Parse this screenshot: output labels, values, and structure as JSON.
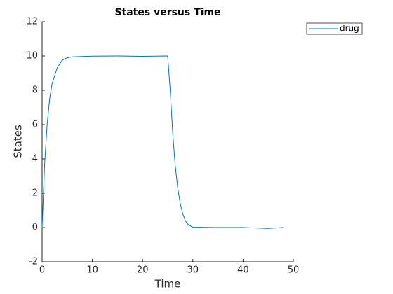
{
  "chart_data": {
    "type": "line",
    "title": "States versus Time",
    "x_label": "Time",
    "y_label": "States",
    "x": [
      0,
      0.5,
      1,
      1.5,
      2,
      3,
      4,
      5,
      6,
      8,
      10,
      15,
      20,
      25,
      25.5,
      26,
      26.5,
      27,
      27.5,
      28,
      28.5,
      29,
      29.5,
      30,
      35,
      40,
      45,
      48
    ],
    "series": [
      {
        "name": "drug",
        "color": "#0072bd",
        "values": [
          0,
          3.7,
          6.0,
          7.5,
          8.4,
          9.3,
          9.75,
          9.9,
          9.95,
          9.97,
          9.99,
          10.0,
          9.98,
          10.0,
          8,
          5.5,
          3.6,
          2.3,
          1.4,
          0.8,
          0.4,
          0.2,
          0.1,
          0.02,
          0,
          0,
          -0.05,
          0
        ]
      }
    ],
    "xlim": [
      0,
      50
    ],
    "xticks": [
      0,
      10,
      20,
      30,
      40,
      50
    ],
    "ylim": [
      -2,
      12
    ],
    "yticks": [
      -2,
      0,
      2,
      4,
      6,
      8,
      10,
      12
    ],
    "legend": "outside-top-right"
  }
}
